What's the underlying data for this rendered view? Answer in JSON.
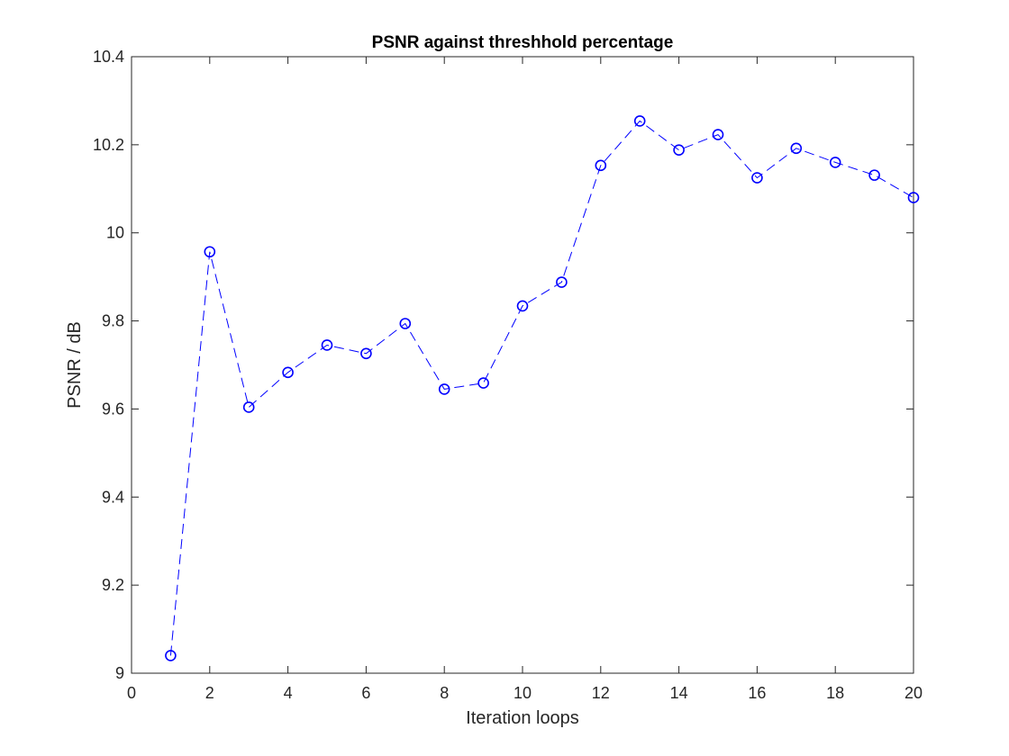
{
  "chart_data": {
    "type": "line",
    "title": "PSNR against threshhold percentage",
    "xlabel": "Iteration loops",
    "ylabel": "PSNR / dB",
    "xlim": [
      0,
      20
    ],
    "ylim": [
      9,
      10.4
    ],
    "xticks": [
      0,
      2,
      4,
      6,
      8,
      10,
      12,
      14,
      16,
      18,
      20
    ],
    "xtick_labels": [
      "0",
      "2",
      "4",
      "6",
      "8",
      "10",
      "12",
      "14",
      "16",
      "18",
      "20"
    ],
    "yticks": [
      9,
      9.2,
      9.4,
      9.6,
      9.8,
      10,
      10.2,
      10.4
    ],
    "ytick_labels": [
      "9",
      "9.2",
      "9.4",
      "9.6",
      "9.8",
      "10",
      "10.2",
      "10.4"
    ],
    "grid": false,
    "legend": "none",
    "series": [
      {
        "color": "#0000ff",
        "line_style": "dashed",
        "marker": "circle",
        "x": [
          1,
          2,
          3,
          4,
          5,
          6,
          7,
          8,
          9,
          10,
          11,
          12,
          13,
          14,
          15,
          16,
          17,
          18,
          19,
          20
        ],
        "y": [
          9.04,
          9.957,
          9.604,
          9.683,
          9.745,
          9.726,
          9.794,
          9.645,
          9.659,
          9.834,
          9.888,
          10.153,
          10.254,
          10.188,
          10.223,
          10.125,
          10.192,
          10.16,
          10.131,
          10.08
        ]
      }
    ]
  }
}
